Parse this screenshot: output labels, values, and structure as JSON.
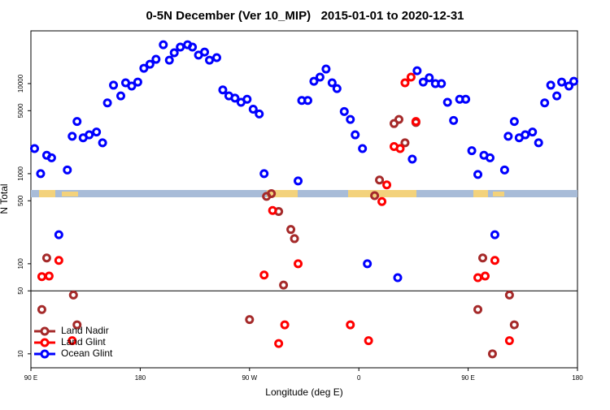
{
  "chart_data": {
    "type": "scatter",
    "title": "0-5N December (Ver 10_MIP)   2015-01-01 to 2020-12-31",
    "xlabel": "Longitude (deg E)",
    "ylabel": "N Total",
    "xlim": [
      90,
      540
    ],
    "xticks": [
      {
        "value": 90,
        "label": "90 E"
      },
      {
        "value": 180,
        "label": "180"
      },
      {
        "value": 270,
        "label": "90 W"
      },
      {
        "value": 360,
        "label": "0"
      },
      {
        "value": 450,
        "label": "90 E"
      },
      {
        "value": 540,
        "label": "180"
      }
    ],
    "ylim": [
      7,
      38500
    ],
    "log_y": true,
    "yticks": [
      10,
      50,
      100,
      500,
      1000,
      5000,
      10000
    ],
    "hline": 50,
    "legend": "bottom left",
    "series": [
      {
        "name": "Land Nadir",
        "color": "#a52a2a",
        "x": [
          99,
          103,
          125,
          128,
          270,
          284,
          288,
          294,
          298,
          304,
          307,
          373,
          377,
          389,
          393,
          398,
          407,
          458,
          462,
          470,
          484,
          488
        ],
        "values": [
          31,
          116,
          45,
          21,
          24,
          560,
          600,
          380,
          58,
          240,
          190,
          570,
          850,
          3600,
          4000,
          2200,
          3700,
          31,
          116,
          10,
          45,
          21
        ]
      },
      {
        "name": "Land Glint",
        "color": "#ff0000",
        "x": [
          99,
          105,
          113,
          124,
          282,
          289,
          294,
          299,
          310,
          353,
          368,
          379,
          383,
          389,
          394,
          398,
          403,
          407,
          458,
          464,
          472,
          484
        ],
        "values": [
          72,
          73,
          109,
          14,
          75,
          390,
          13,
          21,
          100,
          21,
          14,
          490,
          750,
          2000,
          1900,
          10200,
          11800,
          3800,
          70,
          73,
          109,
          14
        ]
      },
      {
        "name": "Ocean Glint",
        "color": "#0000ff",
        "x": [
          93,
          98,
          103,
          107,
          113,
          120,
          124,
          128,
          133,
          138,
          144,
          149,
          153,
          158,
          164,
          168,
          173,
          178,
          183,
          188,
          193,
          199,
          204,
          208,
          213,
          219,
          223,
          228,
          233,
          237,
          243,
          248,
          253,
          258,
          263,
          268,
          273,
          278,
          282,
          310,
          313,
          318,
          323,
          328,
          333,
          338,
          342,
          348,
          353,
          357,
          363,
          367,
          392,
          404,
          408,
          413,
          418,
          423,
          428,
          433,
          438,
          443,
          448,
          453,
          458,
          463,
          468,
          472,
          480,
          483,
          488,
          492,
          497,
          503,
          508,
          513,
          518,
          523,
          527,
          533,
          537
        ],
        "values": [
          1900,
          1000,
          1600,
          1500,
          210,
          1100,
          2600,
          3800,
          2500,
          2700,
          2900,
          2200,
          6100,
          9600,
          7300,
          10200,
          9400,
          10400,
          14800,
          16400,
          18600,
          27000,
          18200,
          22000,
          25400,
          27000,
          25400,
          20700,
          22400,
          18200,
          19400,
          8500,
          7300,
          6900,
          6200,
          6700,
          5200,
          4600,
          1000,
          830,
          6500,
          6500,
          10600,
          11800,
          14500,
          10200,
          8800,
          4900,
          4000,
          2700,
          1900,
          100,
          70,
          1450,
          13900,
          10400,
          11600,
          10000,
          10000,
          6200,
          3900,
          6700,
          6700,
          1800,
          980,
          1600,
          1500,
          210,
          1100,
          2600,
          3800,
          2500,
          2700,
          2900,
          2200,
          6100,
          9600,
          7300,
          10400,
          9400,
          10600
        ]
      }
    ]
  }
}
